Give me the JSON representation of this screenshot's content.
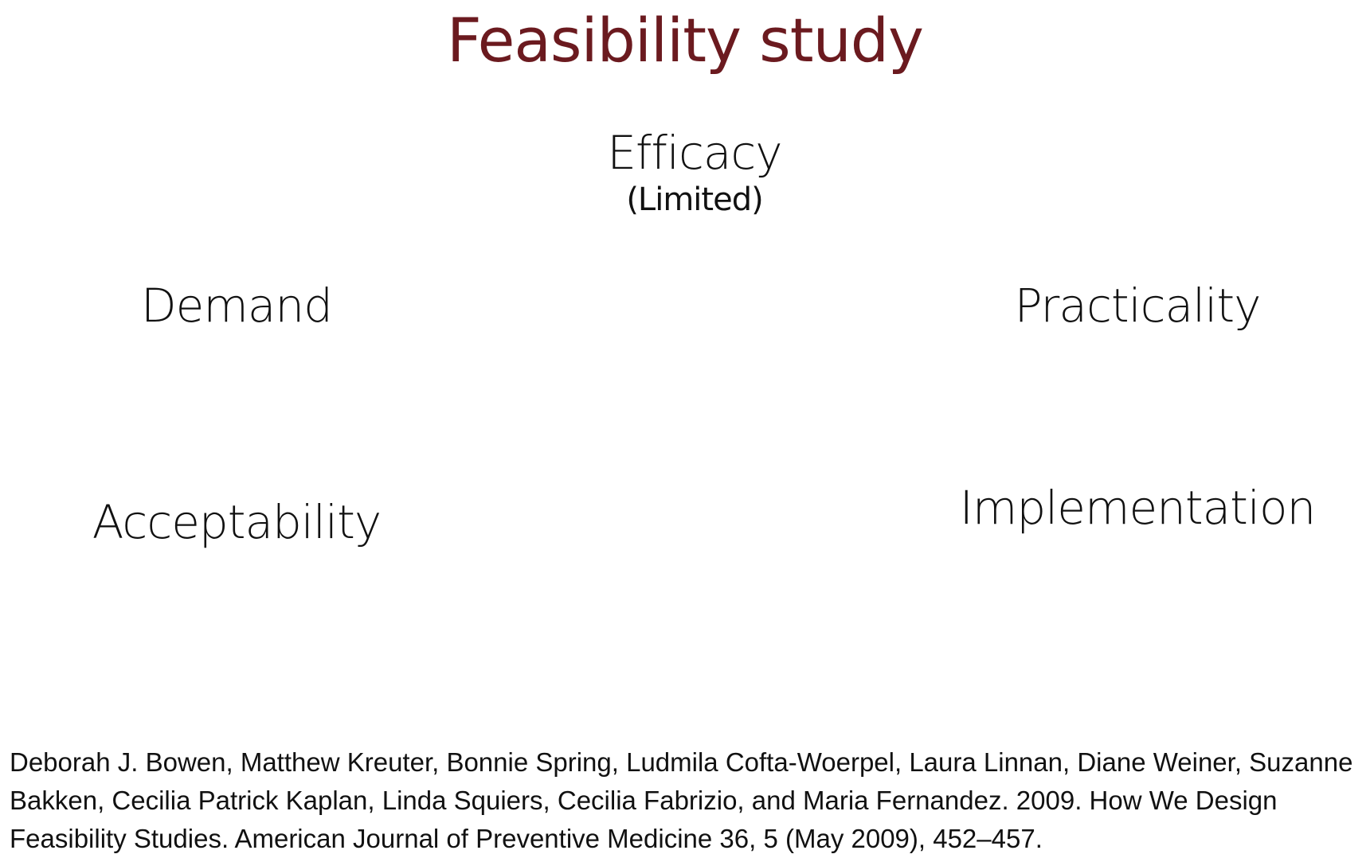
{
  "title": "Feasibility study",
  "terms": {
    "efficacy": "Efficacy",
    "efficacy_qualifier": "(Limited)",
    "demand": "Demand",
    "practicality": "Practicality",
    "acceptability": "Acceptability",
    "implementation": "Implementation"
  },
  "citation": "Deborah J. Bowen, Matthew Kreuter, Bonnie Spring, Ludmila Cofta-Woerpel, Laura Linnan, Diane Weiner, Suzanne Bakken, Cecilia Patrick Kaplan, Linda Squiers, Cecilia Fabrizio, and Maria Fernandez. 2009. How We Design Feasibility Studies. American Journal of Preventive Medicine 36, 5 (May 2009), 452–457.",
  "colors": {
    "title": "#6b1a1f",
    "text": "#111111",
    "background": "#ffffff"
  }
}
